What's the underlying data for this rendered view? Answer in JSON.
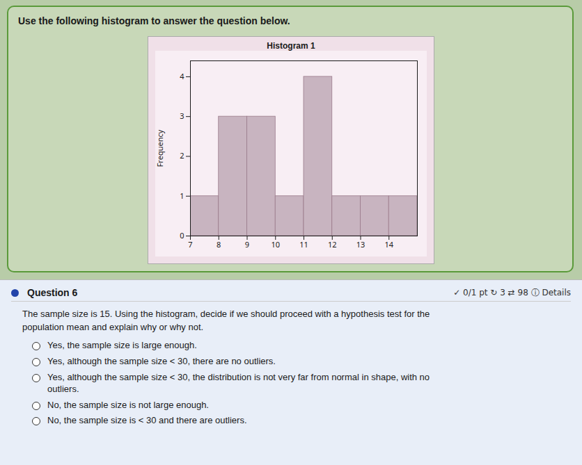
{
  "chart_data": {
    "type": "histogram",
    "title": "Histogram 1",
    "y_label": "Frequency",
    "bins": [
      7,
      8,
      9,
      10,
      11,
      12,
      13,
      14,
      15
    ],
    "values": [
      1,
      3,
      3,
      1,
      4,
      1,
      1,
      1
    ],
    "color": "#c8b4c0",
    "xlim": [
      7,
      15
    ],
    "xticks": [
      7,
      8,
      9,
      10,
      11,
      12,
      13,
      14
    ],
    "ylim": [
      0,
      4.4
    ],
    "yticks": [
      0,
      1,
      2,
      3,
      4
    ],
    "grid": false,
    "annotations": [
      "Use the following histogram to answer the question below.",
      "Question 6",
      "✓ 0/1 pt ↻ 3 ⇄ 98 ⓘ Details",
      "The sample size is 15. Using the histogram, decide if we should proceed with a hypothesis test for the\npopulation mean and explain why or why not.",
      "Yes, the sample size is large enough.",
      "Yes, although the sample size < 30, there are no outliers.",
      "Yes, although the sample size < 30, the distribution is not very far from normal in shape, with no\noutliers.",
      "No, the sample size is not large enough.",
      "No, the sample size is < 30 and there are outliers."
    ]
  }
}
